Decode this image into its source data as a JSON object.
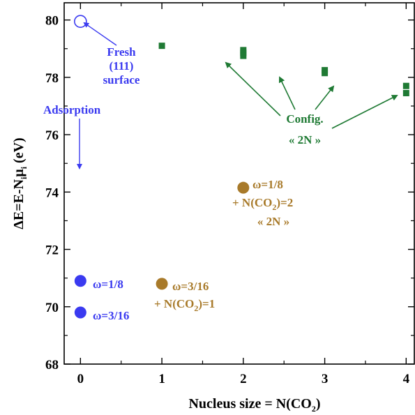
{
  "chart_data": {
    "type": "scatter",
    "title": "",
    "xlabel": "Nucleus size = N(CO2)",
    "xlabel_parts": {
      "main": "Nucleus size = N(CO",
      "sub": "2",
      "tail": ")"
    },
    "ylabel_parts": {
      "a": "ΔE=E-N",
      "sub1": "i",
      "b": "μ",
      "sub2": "i",
      "c": " (eV)"
    },
    "xlim": [
      -0.2,
      4.1
    ],
    "ylim": [
      68,
      80.6
    ],
    "xticks": [
      "0",
      "1",
      "2",
      "3",
      "4"
    ],
    "yticks": [
      "68",
      "70",
      "72",
      "74",
      "76",
      "78",
      "80"
    ],
    "grid": false,
    "colors": {
      "blue": "#3a3af0",
      "green": "#1f7a34",
      "brown": "#a87a2a",
      "axis": "#000000"
    },
    "series": [
      {
        "marker": "open-circle",
        "color": "#3a3af0",
        "points": [
          {
            "x": 0,
            "y": 79.95
          }
        ]
      },
      {
        "marker": "filled-circle",
        "color": "#3a3af0",
        "points": [
          {
            "x": 0,
            "y": 70.9
          },
          {
            "x": 0,
            "y": 69.8
          }
        ]
      },
      {
        "marker": "filled-circle",
        "color": "#a87a2a",
        "points": [
          {
            "x": 1,
            "y": 70.8
          },
          {
            "x": 2,
            "y": 74.15
          }
        ]
      },
      {
        "marker": "square",
        "color": "#1f7a34",
        "points": [
          {
            "x": 1,
            "y": 79.1
          },
          {
            "x": 2,
            "y": 78.95
          },
          {
            "x": 2,
            "y": 78.85
          },
          {
            "x": 2,
            "y": 78.75
          },
          {
            "x": 3,
            "y": 78.25
          },
          {
            "x": 3,
            "y": 78.15
          },
          {
            "x": 4,
            "y": 77.7
          },
          {
            "x": 4,
            "y": 77.45
          }
        ]
      }
    ],
    "annotations": {
      "fresh": [
        "Fresh",
        "(111)",
        "surface"
      ],
      "adsorption": "Adsorption",
      "config": [
        "Config.",
        "« 2N »"
      ],
      "w18": "ω=1/8",
      "w316": "ω=3/16",
      "w316_co2": {
        "a": "ω=3/16",
        "b1": "+ N(CO",
        "sub": "2",
        "b2": ")=1"
      },
      "w18_co2": {
        "a": "ω=1/8",
        "b1": "+ N(CO",
        "sub": "2",
        "b2": ")=2",
        "c": "« 2N »"
      }
    }
  }
}
